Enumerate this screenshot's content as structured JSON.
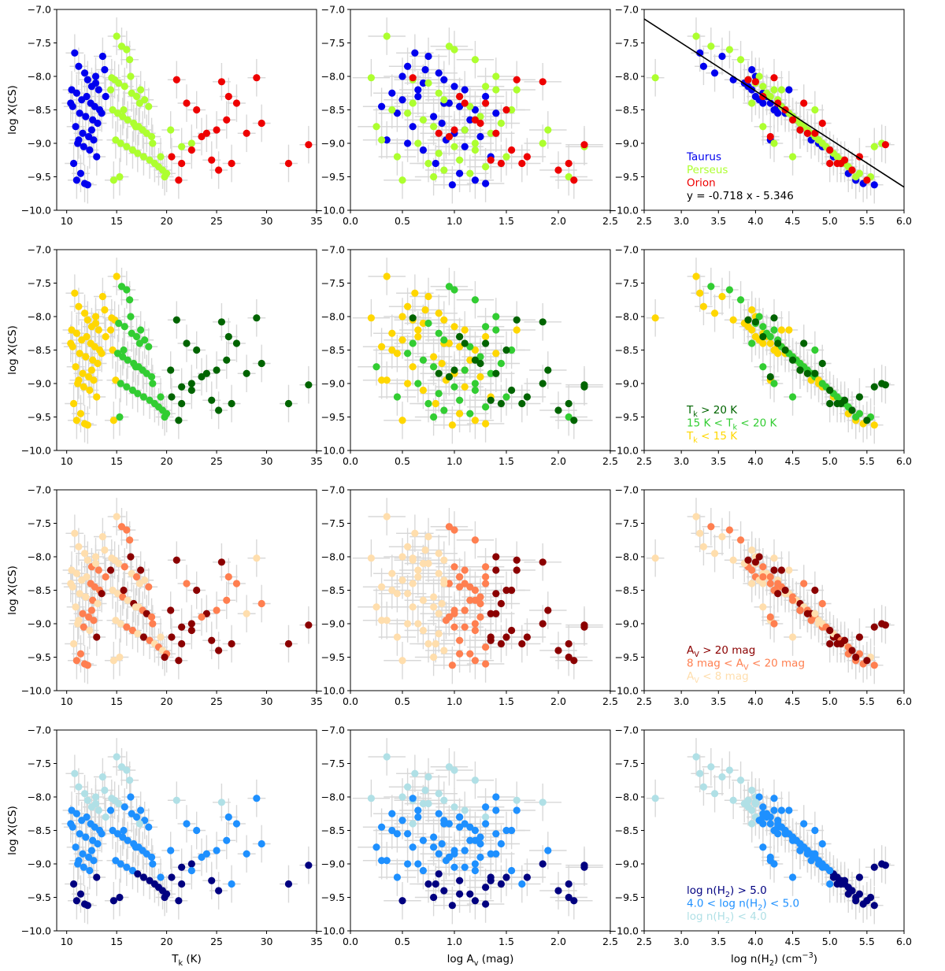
{
  "chart_data": {
    "type": "scatter",
    "title": "",
    "shared": {
      "ylabel": "log X(CS)",
      "ylim": [
        -10.0,
        -7.0
      ],
      "yticks": [
        "-10.0",
        "-9.5",
        "-9.0",
        "-8.5",
        "-8.0",
        "-7.5",
        "-7.0"
      ],
      "columns": [
        {
          "xlabel": "T_k (K)",
          "xlim": [
            9,
            35
          ],
          "xticks": [
            "10",
            "15",
            "20",
            "25",
            "30",
            "35"
          ]
        },
        {
          "xlabel": "log A_v (mag)",
          "xlim": [
            0.0,
            2.5
          ],
          "xticks": [
            "0.0",
            "0.5",
            "1.0",
            "1.5",
            "2.0",
            "2.5"
          ]
        },
        {
          "xlabel": "log n(H_2) (cm^-3)",
          "xlim": [
            2.5,
            6.0
          ],
          "xticks": [
            "2.5",
            "3.0",
            "3.5",
            "4.0",
            "4.5",
            "5.0",
            "5.5",
            "6.0"
          ]
        }
      ]
    },
    "rows": [
      {
        "grouping": "cloud",
        "legend": [
          {
            "label": "Taurus",
            "color": "#0000ee"
          },
          {
            "label": "Perseus",
            "color": "#adff2f"
          },
          {
            "label": "Orion",
            "color": "#ee0000"
          }
        ],
        "fit_line": {
          "label": "y = -0.718 x - 5.346",
          "slope": -0.718,
          "intercept": -5.346
        }
      },
      {
        "grouping": "T_k",
        "legend": [
          {
            "label": "T_k > 20 K",
            "color": "#006400"
          },
          {
            "label": "15 K < T_k < 20 K",
            "color": "#32cd32"
          },
          {
            "label": "T_k < 15 K",
            "color": "#ffd700"
          }
        ]
      },
      {
        "grouping": "A_v",
        "legend": [
          {
            "label": "A_V > 20 mag",
            "color": "#8b0000"
          },
          {
            "label": "8 mag < A_V < 20 mag",
            "color": "#ff7f50"
          },
          {
            "label": "A_V < 8 mag",
            "color": "#ffdead"
          }
        ]
      },
      {
        "grouping": "n(H_2)",
        "legend": [
          {
            "label": "log n(H_2) > 5.0",
            "color": "#000080"
          },
          {
            "label": "4.0 < log n(H_2) < 5.0",
            "color": "#1e90ff"
          },
          {
            "label": "log n(H_2) < 4.0",
            "color": "#b0e0e6"
          }
        ]
      }
    ],
    "sources": {
      "columns": [
        "cloud",
        "T_k",
        "log_Av",
        "log_nH2",
        "log_X_CS"
      ],
      "points": [
        [
          "Taurus",
          10.8,
          0.62,
          3.25,
          -7.65
        ],
        [
          "Taurus",
          11.2,
          0.55,
          3.3,
          -7.85
        ],
        [
          "Taurus",
          11.8,
          0.85,
          3.45,
          -7.95
        ],
        [
          "Taurus",
          12.1,
          0.9,
          3.7,
          -8.05
        ],
        [
          "Taurus",
          12.5,
          1.0,
          3.9,
          -8.15
        ],
        [
          "Taurus",
          12.9,
          0.7,
          3.85,
          -8.1
        ],
        [
          "Taurus",
          13.2,
          1.1,
          3.95,
          -8.2
        ],
        [
          "Taurus",
          13.6,
          0.75,
          3.55,
          -7.7
        ],
        [
          "Taurus",
          13.9,
          1.3,
          4.0,
          -8.3
        ],
        [
          "Taurus",
          11.0,
          0.4,
          4.1,
          -8.25
        ],
        [
          "Taurus",
          11.5,
          0.5,
          4.05,
          -8.35
        ],
        [
          "Taurus",
          12.0,
          0.65,
          4.15,
          -8.3
        ],
        [
          "Taurus",
          12.4,
          0.95,
          4.2,
          -8.4
        ],
        [
          "Taurus",
          12.8,
          1.05,
          4.3,
          -8.45
        ],
        [
          "Taurus",
          13.3,
          1.2,
          4.25,
          -8.5
        ],
        [
          "Taurus",
          10.6,
          0.3,
          4.35,
          -8.45
        ],
        [
          "Taurus",
          11.3,
          0.45,
          4.4,
          -8.55
        ],
        [
          "Taurus",
          11.9,
          0.8,
          4.5,
          -8.6
        ],
        [
          "Taurus",
          12.6,
          1.15,
          4.55,
          -8.65
        ],
        [
          "Taurus",
          13.1,
          0.88,
          4.6,
          -8.7
        ],
        [
          "Taurus",
          10.9,
          0.6,
          4.65,
          -8.75
        ],
        [
          "Taurus",
          11.6,
          1.0,
          4.7,
          -8.85
        ],
        [
          "Taurus",
          12.2,
          1.25,
          4.8,
          -8.9
        ],
        [
          "Taurus",
          12.7,
          0.92,
          4.75,
          -8.95
        ],
        [
          "Taurus",
          11.1,
          0.55,
          4.85,
          -9.0
        ],
        [
          "Taurus",
          11.7,
          1.1,
          4.9,
          -9.05
        ],
        [
          "Taurus",
          12.3,
          0.7,
          5.0,
          -9.1
        ],
        [
          "Taurus",
          13.0,
          1.35,
          5.05,
          -9.2
        ],
        [
          "Taurus",
          10.7,
          0.82,
          5.15,
          -9.3
        ],
        [
          "Taurus",
          11.4,
          1.05,
          5.25,
          -9.45
        ],
        [
          "Taurus",
          11.0,
          1.2,
          5.35,
          -9.55
        ],
        [
          "Taurus",
          11.8,
          1.3,
          5.45,
          -9.6
        ],
        [
          "Taurus",
          12.1,
          0.98,
          5.6,
          -9.62
        ],
        [
          "Taurus",
          10.5,
          0.65,
          4.45,
          -8.2
        ],
        [
          "Taurus",
          12.9,
          0.5,
          4.0,
          -8.0
        ],
        [
          "Taurus",
          13.5,
          1.4,
          4.3,
          -8.55
        ],
        [
          "Taurus",
          11.2,
          0.35,
          4.2,
          -8.95
        ],
        [
          "Taurus",
          12.5,
          1.1,
          4.6,
          -8.8
        ],
        [
          "Taurus",
          13.8,
          0.72,
          3.95,
          -7.9
        ],
        [
          "Taurus",
          10.4,
          0.9,
          4.1,
          -8.4
        ],
        [
          "Perseus",
          14.5,
          0.2,
          2.65,
          -8.02
        ],
        [
          "Perseus",
          15.0,
          0.35,
          3.2,
          -7.4
        ],
        [
          "Perseus",
          15.5,
          0.95,
          3.4,
          -7.55
        ],
        [
          "Perseus",
          16.0,
          1.0,
          3.65,
          -7.6
        ],
        [
          "Perseus",
          16.3,
          1.2,
          3.8,
          -7.75
        ],
        [
          "Perseus",
          14.8,
          0.6,
          3.9,
          -8.05
        ],
        [
          "Perseus",
          15.2,
          0.75,
          4.0,
          -8.1
        ],
        [
          "Perseus",
          15.8,
          1.3,
          4.1,
          -8.15
        ],
        [
          "Perseus",
          16.5,
          0.85,
          4.15,
          -8.25
        ],
        [
          "Perseus",
          17.0,
          1.05,
          4.2,
          -8.3
        ],
        [
          "Perseus",
          17.4,
          1.4,
          4.25,
          -8.2
        ],
        [
          "Perseus",
          17.8,
          0.9,
          4.3,
          -8.35
        ],
        [
          "Perseus",
          18.2,
          1.15,
          4.35,
          -8.45
        ],
        [
          "Perseus",
          14.6,
          0.4,
          4.4,
          -8.5
        ],
        [
          "Perseus",
          15.1,
          0.55,
          4.45,
          -8.55
        ],
        [
          "Perseus",
          15.6,
          1.25,
          4.5,
          -8.6
        ],
        [
          "Perseus",
          16.1,
          0.7,
          4.55,
          -8.65
        ],
        [
          "Perseus",
          16.7,
          1.45,
          4.6,
          -8.7
        ],
        [
          "Perseus",
          17.2,
          0.8,
          4.65,
          -8.75
        ],
        [
          "Perseus",
          17.6,
          1.1,
          4.7,
          -8.8
        ],
        [
          "Perseus",
          18.0,
          1.35,
          4.75,
          -8.85
        ],
        [
          "Perseus",
          18.5,
          0.95,
          4.8,
          -8.9
        ],
        [
          "Perseus",
          14.9,
          0.3,
          4.85,
          -8.95
        ],
        [
          "Perseus",
          15.4,
          0.65,
          4.9,
          -9.0
        ],
        [
          "Perseus",
          16.0,
          1.0,
          4.95,
          -9.05
        ],
        [
          "Perseus",
          16.6,
          1.2,
          5.0,
          -9.1
        ],
        [
          "Perseus",
          17.1,
          0.85,
          5.05,
          -9.15
        ],
        [
          "Perseus",
          17.7,
          1.5,
          5.1,
          -9.2
        ],
        [
          "Perseus",
          18.3,
          1.05,
          5.15,
          -9.25
        ],
        [
          "Perseus",
          18.8,
          0.75,
          5.2,
          -9.3
        ],
        [
          "Perseus",
          19.2,
          1.3,
          5.25,
          -9.35
        ],
        [
          "Perseus",
          19.6,
          0.9,
          5.3,
          -9.4
        ],
        [
          "Perseus",
          20.0,
          1.15,
          5.4,
          -9.45
        ],
        [
          "Perseus",
          14.7,
          0.5,
          5.5,
          -9.55
        ],
        [
          "Perseus",
          15.3,
          0.8,
          5.55,
          -9.5
        ],
        [
          "Perseus",
          16.4,
          1.4,
          4.05,
          -8.0
        ],
        [
          "Perseus",
          17.3,
          0.6,
          3.95,
          -8.4
        ],
        [
          "Perseus",
          18.6,
          1.2,
          4.25,
          -9.0
        ],
        [
          "Perseus",
          19.4,
          0.45,
          4.5,
          -9.2
        ],
        [
          "Perseus",
          15.7,
          1.55,
          4.8,
          -8.5
        ],
        [
          "Perseus",
          16.9,
          0.25,
          4.1,
          -8.75
        ],
        [
          "Perseus",
          14.4,
          1.6,
          4.35,
          -8.2
        ],
        [
          "Perseus",
          20.4,
          1.9,
          4.6,
          -8.8
        ],
        [
          "Perseus",
          21.5,
          2.25,
          5.6,
          -9.05
        ],
        [
          "Perseus",
          22.5,
          1.85,
          5.7,
          -9.0
        ],
        [
          "Perseus",
          19.8,
          2.1,
          5.35,
          -9.5
        ],
        [
          "Orion",
          21.0,
          1.6,
          3.9,
          -8.05
        ],
        [
          "Orion",
          25.5,
          1.85,
          4.0,
          -8.08
        ],
        [
          "Orion",
          29.0,
          0.6,
          4.25,
          -8.02
        ],
        [
          "Orion",
          22.0,
          1.3,
          4.3,
          -8.4
        ],
        [
          "Orion",
          23.0,
          1.5,
          4.4,
          -8.5
        ],
        [
          "Orion",
          26.0,
          1.2,
          4.5,
          -8.65
        ],
        [
          "Orion",
          25.0,
          1.0,
          4.6,
          -8.8
        ],
        [
          "Orion",
          24.0,
          1.4,
          4.7,
          -8.85
        ],
        [
          "Orion",
          27.0,
          1.1,
          4.65,
          -8.4
        ],
        [
          "Orion",
          28.0,
          0.85,
          4.8,
          -8.85
        ],
        [
          "Orion",
          29.5,
          1.25,
          4.9,
          -8.7
        ],
        [
          "Orion",
          22.5,
          1.55,
          5.0,
          -9.1
        ],
        [
          "Orion",
          21.5,
          1.45,
          5.1,
          -9.3
        ],
        [
          "Orion",
          24.5,
          1.35,
          5.2,
          -9.25
        ],
        [
          "Orion",
          25.2,
          2.0,
          5.3,
          -9.4
        ],
        [
          "Orion",
          26.5,
          1.65,
          5.0,
          -9.3
        ],
        [
          "Orion",
          32.2,
          2.1,
          5.15,
          -9.3
        ],
        [
          "Orion",
          34.2,
          2.25,
          5.75,
          -9.02
        ],
        [
          "Orion",
          21.2,
          2.15,
          5.5,
          -9.55
        ],
        [
          "Orion",
          20.5,
          1.7,
          5.4,
          -9.2
        ],
        [
          "Orion",
          23.5,
          0.95,
          4.2,
          -8.9
        ],
        [
          "Orion",
          26.2,
          1.05,
          4.1,
          -8.3
        ]
      ]
    }
  }
}
